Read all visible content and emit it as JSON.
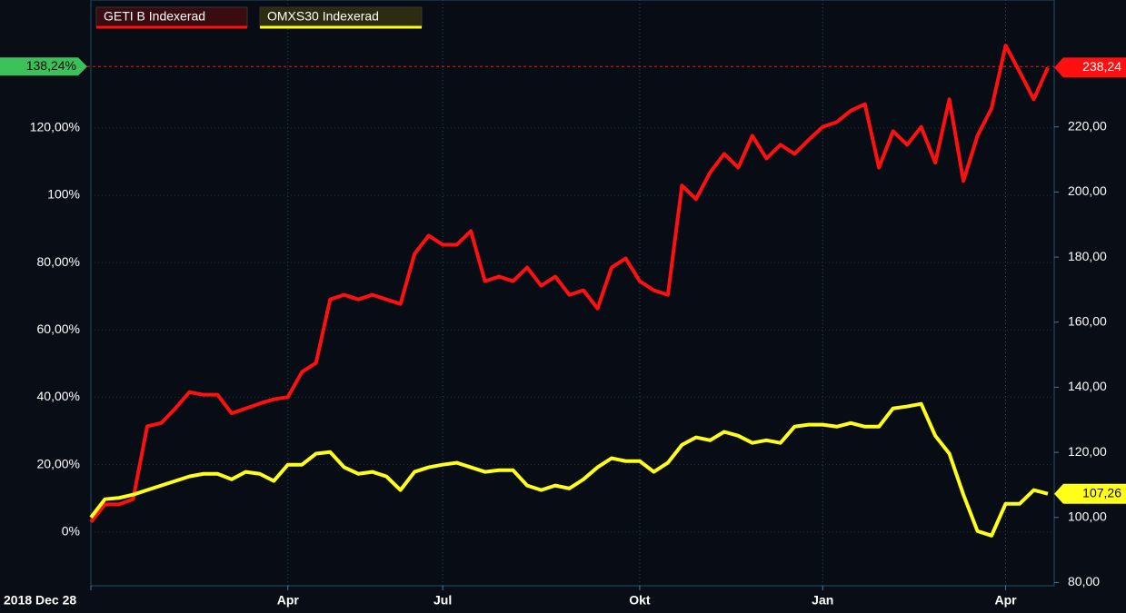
{
  "chart_data": {
    "type": "line",
    "categories": [
      "2018 Dec 28",
      null,
      null,
      null,
      null,
      null,
      null,
      null,
      null,
      null,
      null,
      null,
      null,
      null,
      "Apr",
      null,
      null,
      null,
      null,
      null,
      null,
      null,
      null,
      null,
      null,
      "Jul",
      null,
      null,
      null,
      null,
      null,
      null,
      null,
      null,
      null,
      null,
      null,
      null,
      null,
      "Okt",
      null,
      null,
      null,
      null,
      null,
      null,
      null,
      null,
      null,
      null,
      null,
      null,
      "Jan",
      null,
      null,
      null,
      null,
      null,
      null,
      null,
      null,
      null,
      null,
      null,
      null,
      "Apr",
      null,
      null,
      null
    ],
    "series": [
      {
        "name": "GETI B Indexerad",
        "color": "#ff1010",
        "axis": "y2",
        "values": [
          98.6,
          104,
          104,
          105.6,
          128,
          129,
          133.5,
          138.5,
          137.7,
          137.7,
          132,
          133.5,
          135,
          136.3,
          137,
          144.7,
          147.5,
          167,
          168.4,
          167,
          168.4,
          167,
          165.6,
          181,
          186.6,
          183.8,
          183.8,
          188,
          172.6,
          174,
          172.6,
          176.8,
          171.2,
          174,
          168.4,
          169.8,
          164.2,
          176.8,
          179.6,
          172.6,
          169.8,
          168.4,
          202,
          197.8,
          206,
          211.7,
          207.5,
          217.3,
          210.3,
          214.5,
          211.7,
          216,
          220,
          221.5,
          225,
          227,
          207.5,
          218.7,
          214.5,
          220,
          209,
          228.5,
          203.4,
          217.3,
          225.7,
          245,
          236.9,
          228.5,
          238.24
        ]
      },
      {
        "name": "OMXS30 Indexerad",
        "color": "#ffff1a",
        "axis": "y2",
        "values": [
          100,
          105.6,
          106,
          107,
          108.4,
          109.8,
          111.2,
          112.6,
          113.4,
          113.4,
          111.7,
          114,
          113.4,
          111.2,
          116.2,
          116.2,
          119.6,
          120.1,
          115.4,
          113.4,
          114,
          112.6,
          108.4,
          114,
          115.4,
          116.2,
          116.8,
          115.4,
          114,
          114.5,
          114.5,
          109.8,
          108.4,
          109.8,
          108.9,
          111.7,
          115.4,
          118.2,
          117.3,
          117.3,
          114,
          116.8,
          122.3,
          124.6,
          123.7,
          126.3,
          125.1,
          122.9,
          123.7,
          122.9,
          127.9,
          128.5,
          128.5,
          127.9,
          129,
          127.9,
          127.9,
          133.5,
          134.1,
          134.9,
          125.1,
          119.6,
          107,
          95.8,
          94.4,
          104.2,
          104.2,
          108.4,
          107.26
        ]
      }
    ],
    "ylim": [
      -16,
      158
    ],
    "yticks": [
      {
        "value": 0,
        "label": "0%"
      },
      {
        "value": 20,
        "label": "20,00%"
      },
      {
        "value": 40,
        "label": "40,00%"
      },
      {
        "value": 60,
        "label": "60,00%"
      },
      {
        "value": 80,
        "label": "80,00%"
      },
      {
        "value": 100,
        "label": "100%"
      },
      {
        "value": 120,
        "label": "120,00%"
      }
    ],
    "y2lim": [
      79,
      259
    ],
    "y2ticks": [
      {
        "value": 80,
        "label": "80,00"
      },
      {
        "value": 100,
        "label": "100,00"
      },
      {
        "value": 120,
        "label": "120,00"
      },
      {
        "value": 140,
        "label": "140,00"
      },
      {
        "value": 160,
        "label": "160,00"
      },
      {
        "value": 180,
        "label": "180,00"
      },
      {
        "value": 200,
        "label": "200,00"
      },
      {
        "value": 220,
        "label": "220,00"
      }
    ],
    "grid": true,
    "annotations": [
      {
        "text": "138,24%",
        "value": 138.24,
        "axis": "y",
        "color": "#3cc05a"
      },
      {
        "text": "238,24",
        "value": 238.24,
        "axis": "y2",
        "color": "#ff1010"
      },
      {
        "text": "107,26",
        "value": 107.26,
        "axis": "y2",
        "color": "#ffff1a"
      }
    ]
  }
}
